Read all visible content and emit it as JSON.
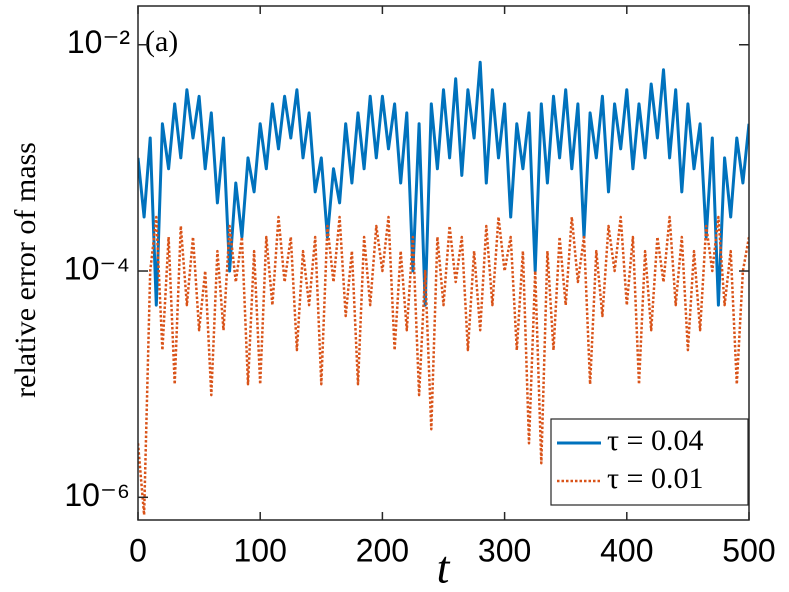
{
  "chart_data": {
    "type": "line",
    "annotation": "(a)",
    "xlabel": "t",
    "ylabel": "relative error of mass",
    "log_y": true,
    "legend": "lower right",
    "xlim": [
      0,
      500
    ],
    "xticks": [
      0,
      100,
      200,
      300,
      400,
      500
    ],
    "ylim": [
      6.3e-07,
      0.022
    ],
    "yticks": [
      {
        "value": 1e-06,
        "label": "10⁻⁶"
      },
      {
        "value": 0.0001,
        "label": "10⁻⁴"
      },
      {
        "value": 0.01,
        "label": "10⁻²"
      }
    ],
    "x": [
      0,
      5,
      10,
      15,
      20,
      25,
      30,
      35,
      40,
      45,
      50,
      55,
      60,
      65,
      70,
      75,
      80,
      85,
      90,
      95,
      100,
      105,
      110,
      115,
      120,
      125,
      130,
      135,
      140,
      145,
      150,
      155,
      160,
      165,
      170,
      175,
      180,
      185,
      190,
      195,
      200,
      205,
      210,
      215,
      220,
      225,
      230,
      235,
      240,
      245,
      250,
      255,
      260,
      265,
      270,
      275,
      280,
      285,
      290,
      295,
      300,
      305,
      310,
      315,
      320,
      325,
      330,
      335,
      340,
      345,
      350,
      355,
      360,
      365,
      370,
      375,
      380,
      385,
      390,
      395,
      400,
      405,
      410,
      415,
      420,
      425,
      430,
      435,
      440,
      445,
      450,
      455,
      460,
      465,
      470,
      475,
      480,
      485,
      490,
      495,
      500
    ],
    "series": [
      {
        "name": "τ = 0.04",
        "color": "#0072bd",
        "dash": "solid",
        "values": [
          0.001,
          0.0003,
          0.0015,
          5e-05,
          0.002,
          0.0008,
          0.003,
          0.001,
          0.004,
          0.0015,
          0.0035,
          0.0008,
          0.0025,
          0.0004,
          0.0015,
          0.0001,
          0.0006,
          0.0002,
          0.001,
          0.0005,
          0.002,
          0.0008,
          0.003,
          0.0012,
          0.0035,
          0.0015,
          0.004,
          0.001,
          0.0025,
          0.0005,
          0.001,
          0.0002,
          0.0008,
          0.0004,
          0.002,
          0.0006,
          0.0025,
          0.0008,
          0.0035,
          0.001,
          0.0035,
          0.0012,
          0.003,
          0.0006,
          0.0025,
          0.0001,
          0.002,
          5e-05,
          0.003,
          0.0008,
          0.004,
          0.001,
          0.005,
          0.0007,
          0.004,
          0.0015,
          0.007,
          0.0006,
          0.004,
          0.001,
          0.003,
          0.0003,
          0.002,
          0.0008,
          0.0025,
          0.0001,
          0.003,
          0.0006,
          0.0035,
          0.001,
          0.004,
          0.0008,
          0.003,
          0.0002,
          0.0025,
          0.001,
          0.0035,
          0.0005,
          0.003,
          0.0012,
          0.004,
          0.0008,
          0.003,
          0.001,
          0.0045,
          0.0015,
          0.006,
          0.001,
          0.004,
          0.0005,
          0.003,
          0.0008,
          0.002,
          0.0002,
          0.0015,
          5e-05,
          0.001,
          0.0003,
          0.0015,
          0.0006,
          0.002
        ]
      },
      {
        "name": "τ = 0.01",
        "color": "#d95319",
        "dash": "dotted",
        "values": [
          3e-06,
          7e-07,
          0.0001,
          0.0003,
          2e-05,
          0.0002,
          1e-05,
          0.00025,
          5e-05,
          0.0002,
          3e-05,
          0.0001,
          8e-06,
          0.00015,
          3e-05,
          0.00025,
          8e-05,
          0.0002,
          1e-05,
          0.00015,
          1e-05,
          0.0002,
          5e-05,
          0.0003,
          8e-05,
          0.0002,
          2e-05,
          0.00015,
          5e-05,
          0.0002,
          1e-05,
          0.00025,
          8e-05,
          0.0003,
          4e-05,
          0.00015,
          1e-05,
          0.0002,
          5e-05,
          0.00025,
          0.0001,
          0.0003,
          2e-05,
          0.00015,
          3e-05,
          0.0002,
          8e-06,
          0.0001,
          4e-06,
          0.0002,
          5e-05,
          0.00025,
          8e-05,
          0.0002,
          2e-05,
          0.00015,
          3e-05,
          0.00025,
          5e-05,
          0.0003,
          0.0001,
          0.0002,
          2e-05,
          0.00015,
          3e-06,
          0.0001,
          2e-06,
          0.00015,
          2e-05,
          0.0002,
          5e-05,
          0.0003,
          8e-05,
          0.0002,
          1e-05,
          0.00015,
          4e-05,
          0.00025,
          0.0001,
          0.0003,
          5e-05,
          0.0002,
          1e-05,
          0.00015,
          3e-05,
          0.0002,
          8e-05,
          0.0003,
          5e-05,
          0.0002,
          2e-05,
          0.00015,
          3e-05,
          0.00025,
          0.0001,
          0.0003,
          5e-05,
          0.00015,
          1e-05,
          0.0001,
          0.0002
        ]
      }
    ]
  }
}
